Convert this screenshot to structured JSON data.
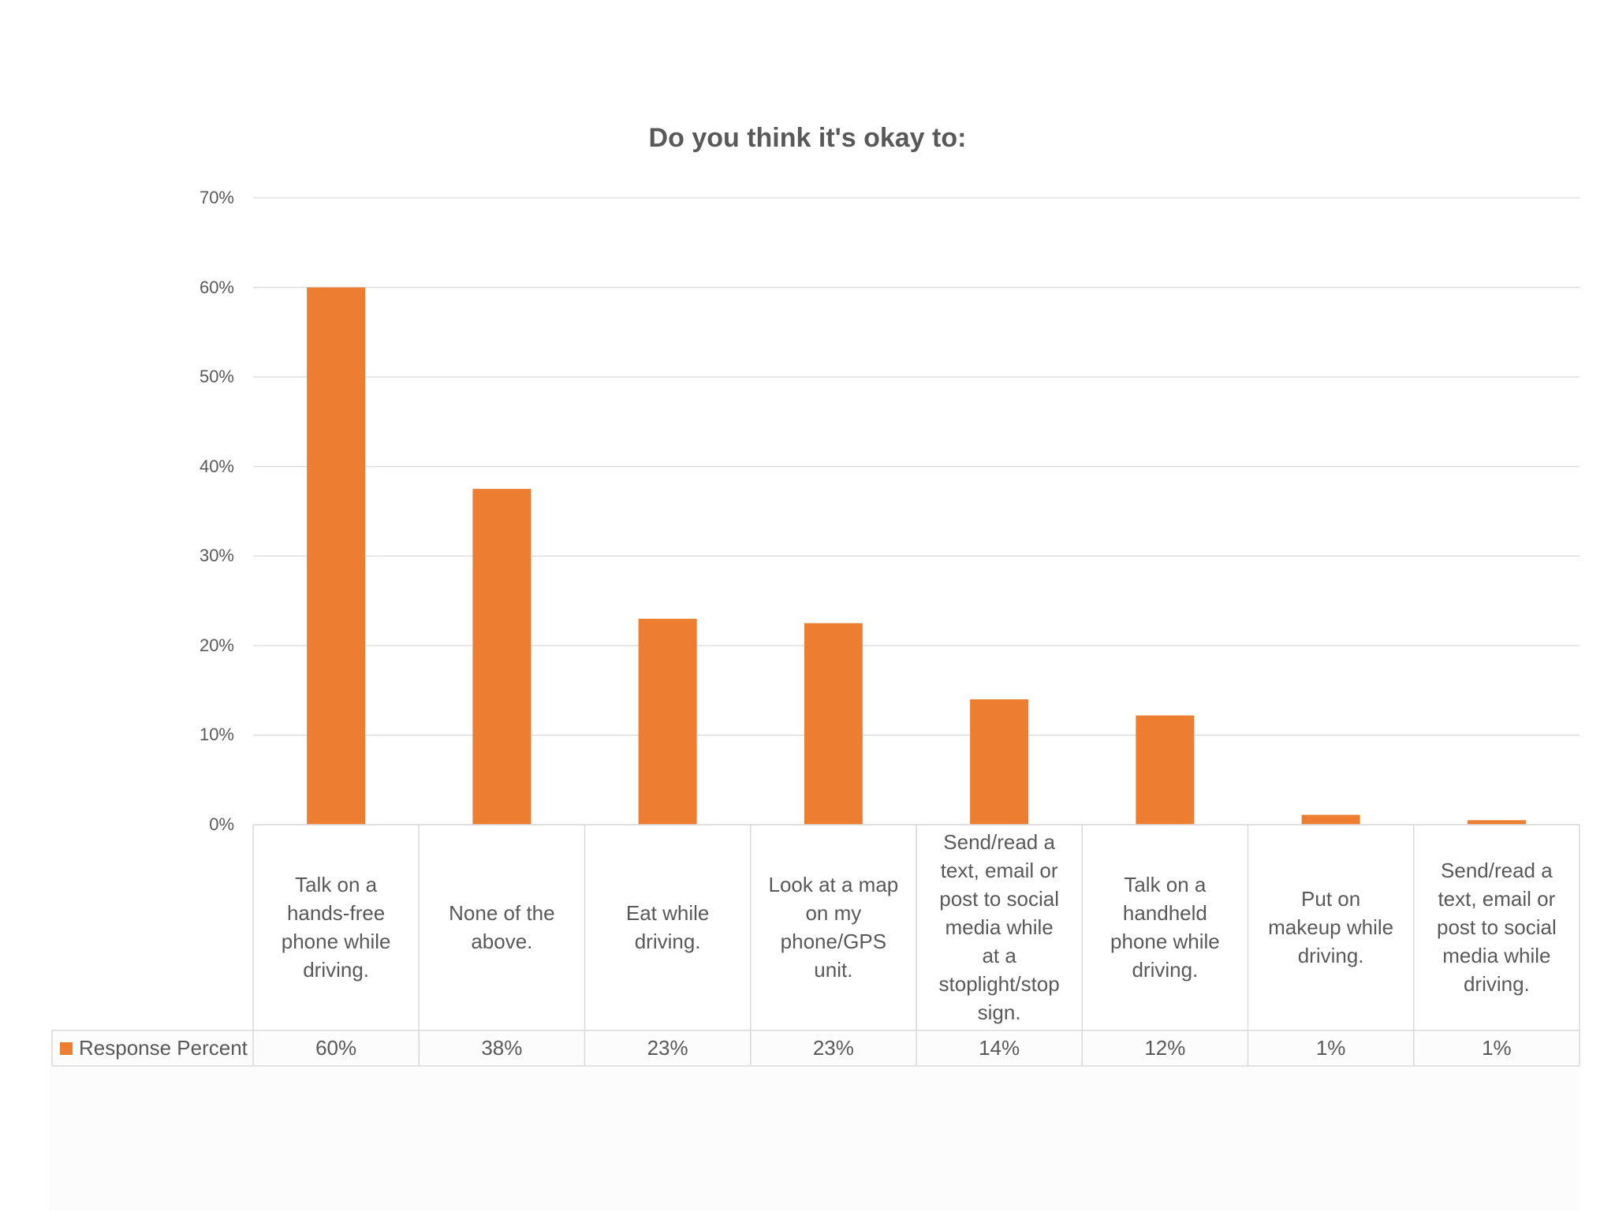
{
  "chart_data": {
    "type": "bar",
    "title": "Do you think it's okay to:",
    "xlabel": "",
    "ylabel": "",
    "ylim": [
      0,
      70
    ],
    "yticks": [
      "70%",
      "60%",
      "50%",
      "40%",
      "30%",
      "20%",
      "10%",
      "0%"
    ],
    "ytick_values": [
      70,
      60,
      50,
      40,
      30,
      20,
      10,
      0
    ],
    "grid": true,
    "legend": "bottom-left (data table)",
    "categories": [
      "Talk on a hands-free phone while driving.",
      "None of the above.",
      "Eat while driving.",
      "Look at a map on my phone/GPS unit.",
      "Send/read a text, email or post to social media while at a stoplight/stop sign.",
      "Talk on a handheld phone while driving.",
      "Put on makeup while driving.",
      "Send/read a text, email or post to social media while driving."
    ],
    "category_lines": [
      [
        "Talk on a",
        "hands-free",
        "phone while",
        "driving."
      ],
      [
        "None of the",
        "above."
      ],
      [
        "Eat while",
        "driving."
      ],
      [
        "Look at a map",
        "on my",
        "phone/GPS",
        "unit."
      ],
      [
        "Send/read a",
        "text, email or",
        "post to social",
        "media while",
        "at a",
        "stoplight/stop",
        "sign."
      ],
      [
        "Talk on a",
        "handheld",
        "phone while",
        "driving."
      ],
      [
        "Put on",
        "makeup while",
        "driving."
      ],
      [
        "Send/read a",
        "text, email or",
        "post to social",
        "media while",
        "driving."
      ]
    ],
    "series": [
      {
        "name": "Response Percent",
        "values": [
          60,
          37.5,
          23,
          22.5,
          14,
          12.2,
          1.1,
          0.5
        ],
        "labels": [
          "60%",
          "38%",
          "23%",
          "23%",
          "14%",
          "12%",
          "1%",
          "1%"
        ]
      }
    ]
  },
  "colors": {
    "bar": "#ED7D31",
    "grid": "#D9D9D9",
    "text": "#595959",
    "table_border": "#D9D9D9"
  }
}
